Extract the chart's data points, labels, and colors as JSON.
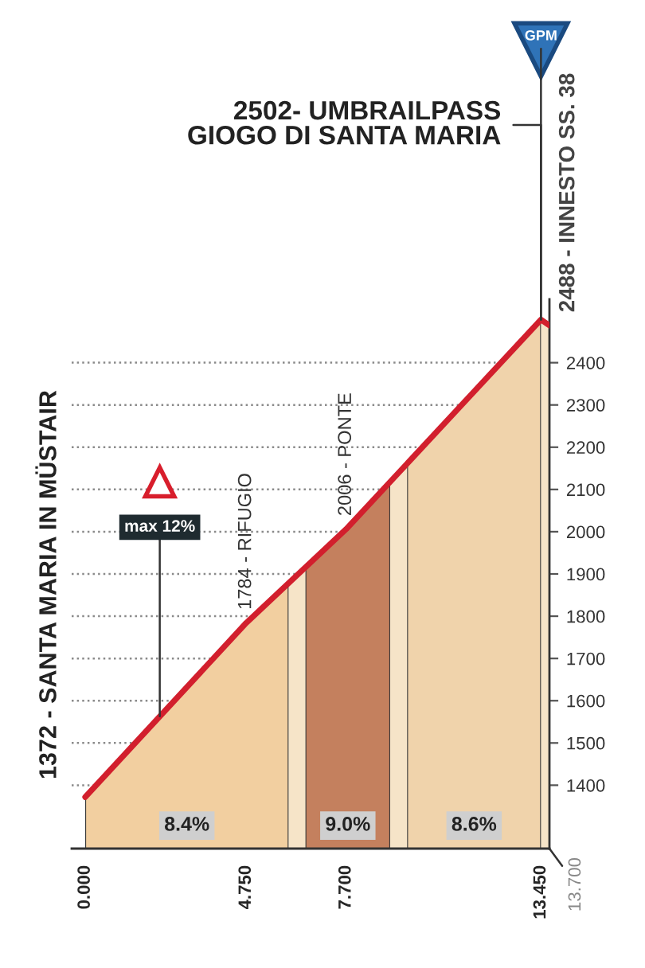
{
  "chart_data": {
    "type": "area",
    "x": [
      0,
      4.75,
      7.7,
      13.45,
      13.7
    ],
    "series": [
      {
        "color": "#f6e4c8",
        "values": [
          1372,
          1784,
          2006,
          2502,
          2488
        ]
      }
    ],
    "xlim": [
      -0.4,
      13.7
    ],
    "ylim": [
      1250,
      2550
    ],
    "xticks": [
      {
        "value": 0,
        "label": "0.000"
      },
      {
        "value": 4.75,
        "label": "4.750"
      },
      {
        "value": 7.7,
        "label": "7.700"
      },
      {
        "value": 13.45,
        "label": "13.450"
      }
    ],
    "yticks": [
      1400,
      1500,
      1600,
      1700,
      1800,
      1900,
      2000,
      2100,
      2200,
      2300,
      2400
    ],
    "grid": "y",
    "bands": [
      {
        "axis": "x",
        "from": 0,
        "to": 6.0,
        "label": "8.4%",
        "color": "#f2cfa0"
      },
      {
        "axis": "x",
        "from": 6.5,
        "to": 9.0,
        "label": "9.0%",
        "color": "#c4805e"
      },
      {
        "axis": "x",
        "from": 9.5,
        "to": 13.45,
        "label": "8.6%",
        "color": "#f0d3ab"
      }
    ],
    "annotations": [
      {
        "text": "1372 - SANTA MARIA IN MÜSTAIR",
        "x": 0,
        "y": 1372
      },
      {
        "text": "1784 - RIFUGIO",
        "x": 4.75,
        "y": 1784
      },
      {
        "text": "2006 - PONTE",
        "x": 7.7,
        "y": 2006
      },
      {
        "text": "max 12%",
        "x": 2.2,
        "y": 1563
      },
      {
        "text": "2502- UMBRAILPASS\nGIOGO DI SANTA MARIA",
        "x": 13.45,
        "y": 2502
      },
      {
        "text": "GPM",
        "x": 13.45,
        "y": 2502
      },
      {
        "text": "2488 - INNESTO SS. 38",
        "x": 13.7,
        "y": 2488
      },
      {
        "text": "13.700",
        "x": 13.7,
        "y": 1250
      }
    ]
  }
}
